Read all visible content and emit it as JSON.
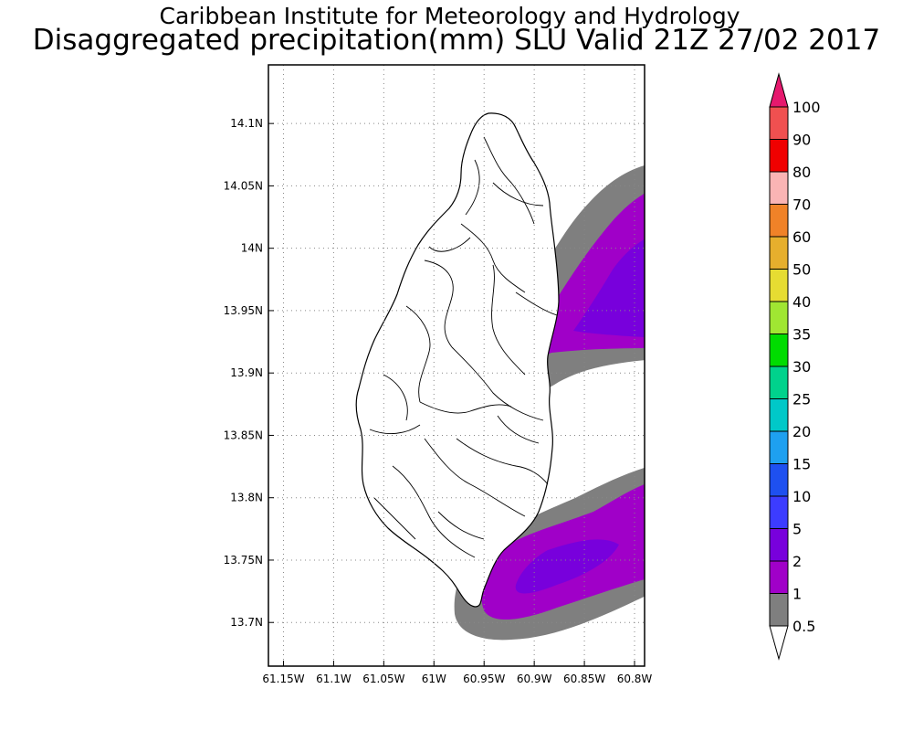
{
  "header": {
    "organization": "Caribbean Institute for Meteorology and Hydrology",
    "product": "Disaggregated precipitation(mm) SLU Valid 21Z 27/02 2017"
  },
  "map": {
    "lat_labels": [
      "14.1N",
      "14.05N",
      "14N",
      "13.95N",
      "13.9N",
      "13.85N",
      "13.8N",
      "13.75N",
      "13.7N"
    ],
    "lat_values": [
      14.1,
      14.05,
      14.0,
      13.95,
      13.9,
      13.85,
      13.8,
      13.75,
      13.7
    ],
    "lon_labels": [
      "61.15W",
      "61.1W",
      "61.05W",
      "61W",
      "60.95W",
      "60.9W",
      "60.85W",
      "60.8W"
    ],
    "lon_values": [
      -61.15,
      -61.1,
      -61.05,
      -61.0,
      -60.95,
      -60.9,
      -60.85,
      -60.8
    ],
    "lon_range": [
      -61.165,
      -60.79
    ],
    "lat_range": [
      13.665,
      14.147
    ],
    "grid": "dotted",
    "land_color": "#ffffff",
    "boundary_color": "#000000"
  },
  "legend": {
    "placement": "right",
    "levels": [
      "0.5",
      "1",
      "2",
      "5",
      "10",
      "15",
      "20",
      "25",
      "30",
      "35",
      "40",
      "50",
      "60",
      "70",
      "80",
      "90",
      "100"
    ],
    "colors": [
      "#7f7f7f",
      "#a000c8",
      "#7800dc",
      "#3c3cff",
      "#1e50f0",
      "#1ea0f0",
      "#00c8c8",
      "#00d28c",
      "#00dc00",
      "#a0e632",
      "#e6dc32",
      "#e6af2d",
      "#f08228",
      "#fab4b4",
      "#f00000",
      "#f05050"
    ],
    "below_color": "#ffffff",
    "above_color": "#e6196e"
  }
}
